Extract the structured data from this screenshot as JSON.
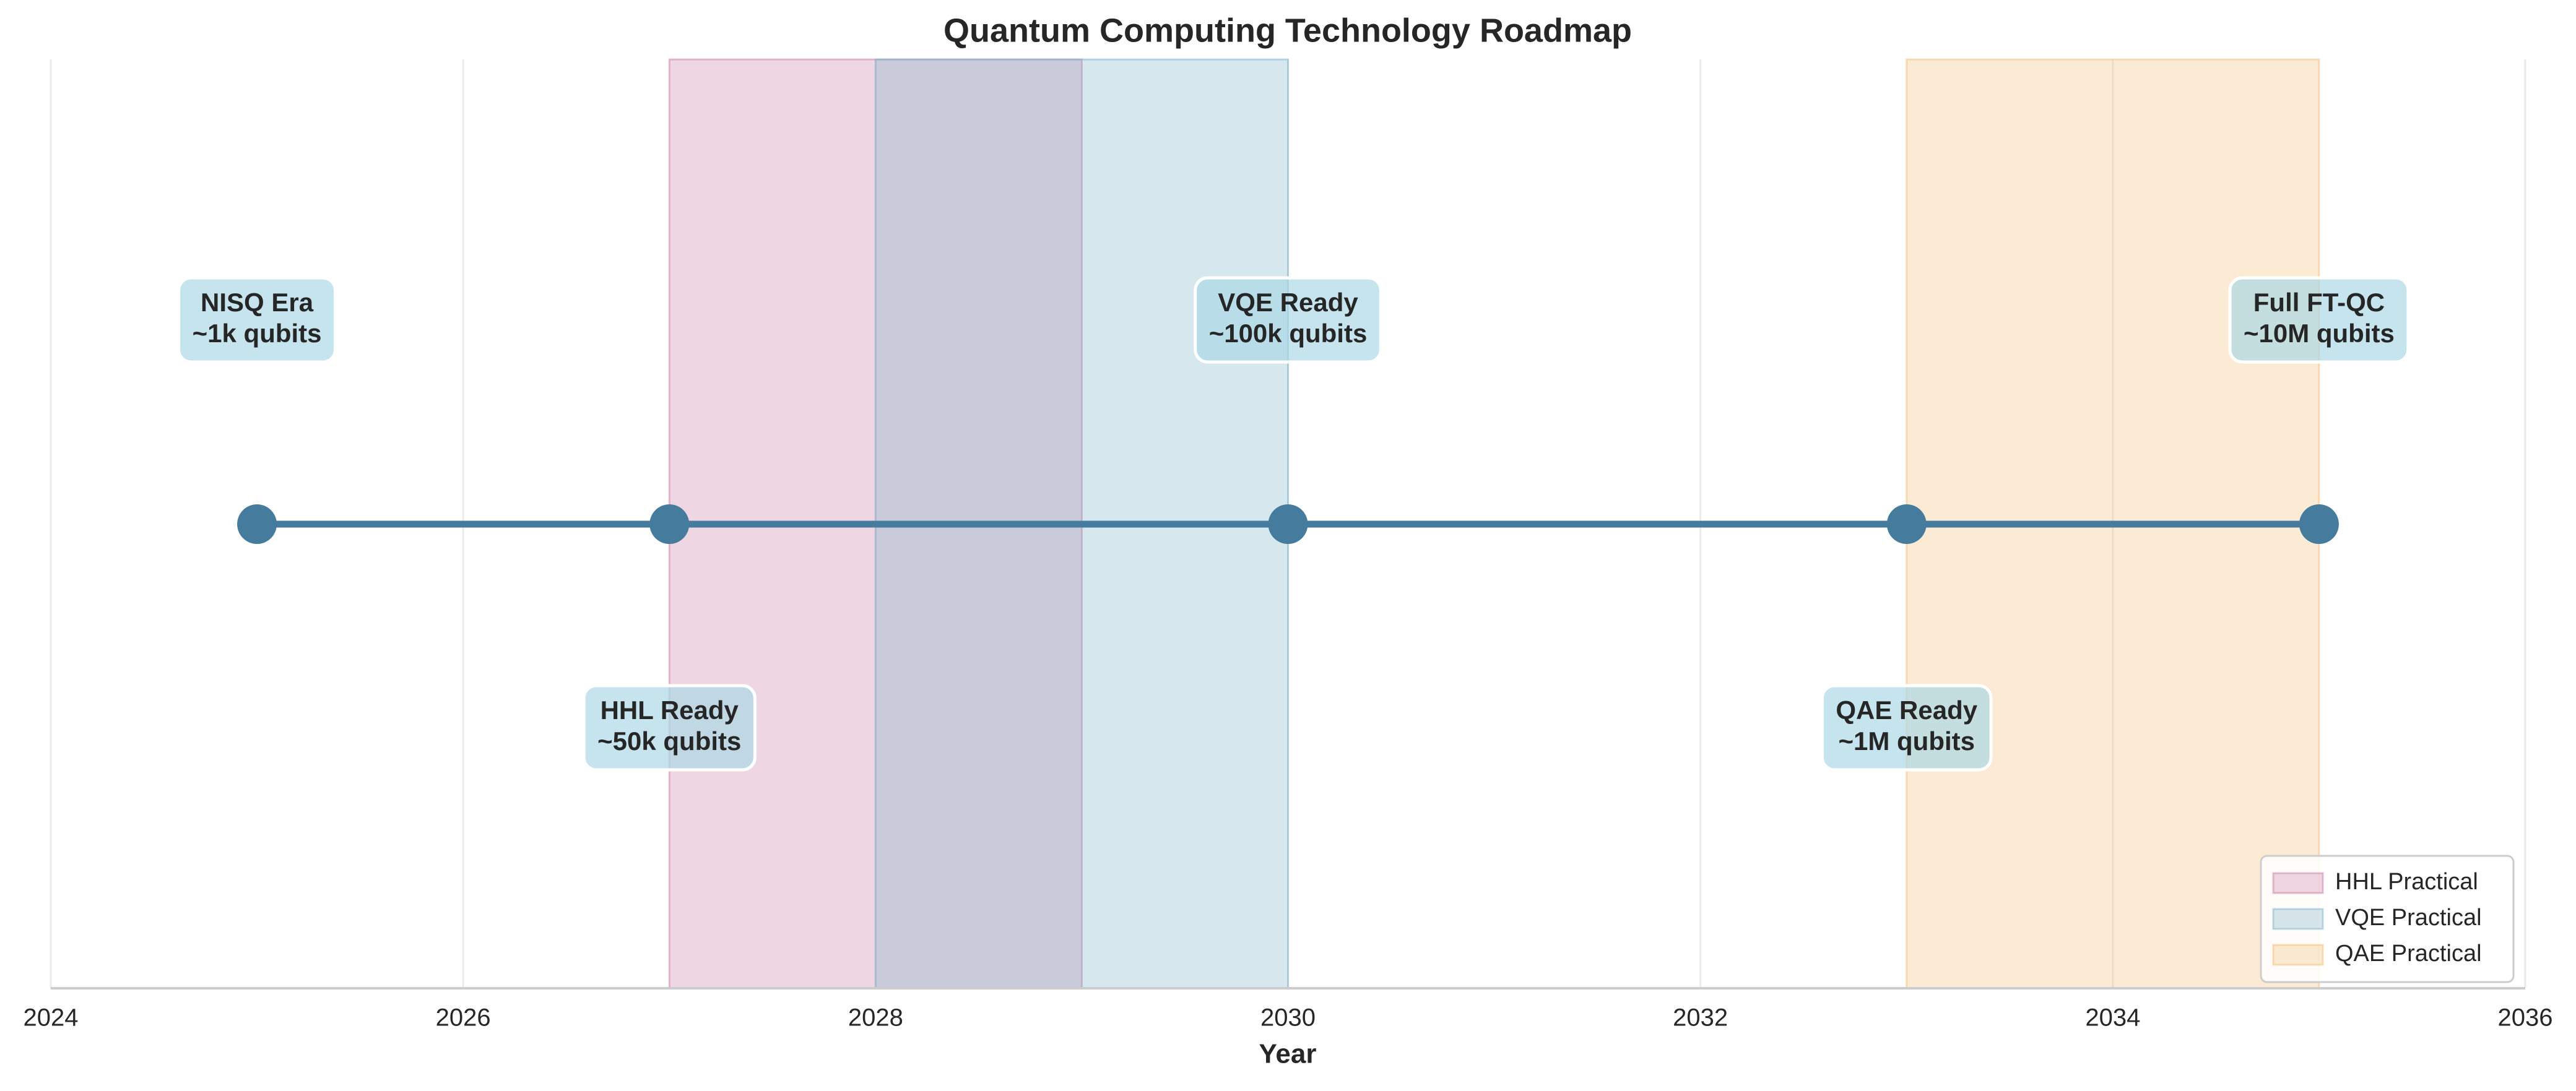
{
  "chart_data": {
    "type": "timeline",
    "title": "Quantum Computing Technology Roadmap",
    "xlabel": "Year",
    "xlim": [
      2024,
      2036
    ],
    "xticks": [
      2024,
      2026,
      2028,
      2030,
      2032,
      2034,
      2036
    ],
    "grid": true,
    "legend": "lower right",
    "milestones": {
      "color": "#457b9d",
      "x": [
        2025,
        2027,
        2030,
        2033,
        2035
      ],
      "names": [
        "NISQ Era",
        "HHL Ready",
        "VQE Ready",
        "QAE Ready",
        "Full FT-QC"
      ],
      "details": [
        "~1k qubits",
        "~50k qubits",
        "~100k qubits",
        "~1M qubits",
        "~10M qubits"
      ]
    },
    "spans": [
      {
        "name": "HHL Practical",
        "color": "#c97ea6",
        "start": 2027,
        "end": 2029
      },
      {
        "name": "VQE Practical",
        "color": "#7fb3cb",
        "start": 2028,
        "end": 2030
      },
      {
        "name": "QAE Practical",
        "color": "#f4be7a",
        "start": 2033,
        "end": 2035
      }
    ]
  }
}
